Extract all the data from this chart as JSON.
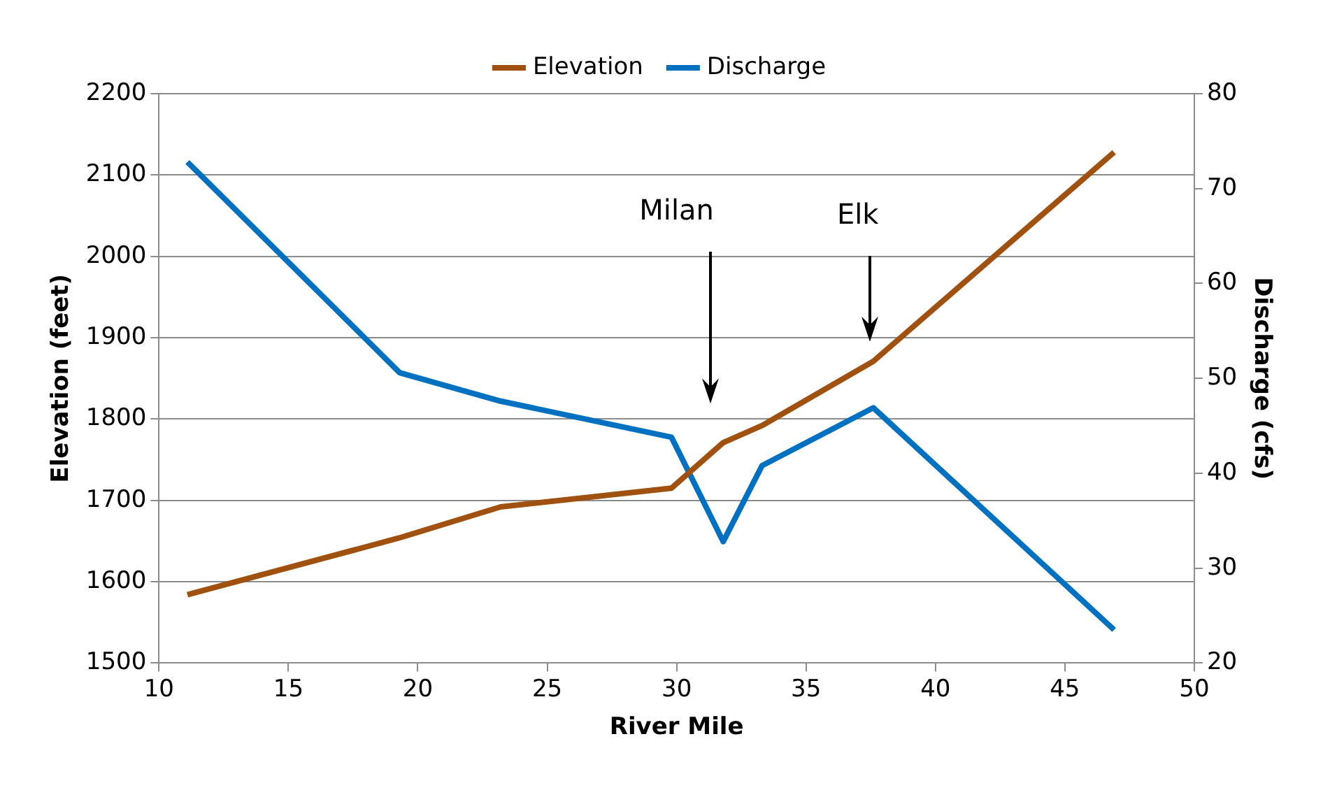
{
  "chart_data": {
    "type": "line",
    "x": [
      11.1,
      19.3,
      23.2,
      29.8,
      31.8,
      33.3,
      37.6,
      46.9
    ],
    "series": [
      {
        "name": "Elevation",
        "color": "#a0500f",
        "values": [
          1584,
          1654,
          1692,
          1715,
          1771,
          1792,
          1871,
          2128
        ]
      },
      {
        "name": "Discharge",
        "color": "#0070c0",
        "axis": "y2",
        "values": [
          72.8,
          50.6,
          47.6,
          43.8,
          32.8,
          40.8,
          46.9,
          23.5
        ]
      }
    ],
    "xlabel": "River Mile",
    "ylabel": "Elevation (feet)",
    "y2label": "Discharge (cfs)",
    "xlim": [
      10,
      50
    ],
    "xticks": [
      10,
      15,
      20,
      25,
      30,
      35,
      40,
      45,
      50
    ],
    "ylim": [
      1500,
      2200
    ],
    "yticks": [
      1500,
      1600,
      1700,
      1800,
      1900,
      2000,
      2100,
      2200
    ],
    "y2lim": [
      20,
      80
    ],
    "y2ticks": [
      20,
      30,
      40,
      50,
      60,
      70,
      80
    ],
    "annotations": [
      "Milan",
      "Elk"
    ],
    "grid": "y",
    "legend": "top",
    "marker": "none",
    "line_style": "solid"
  }
}
